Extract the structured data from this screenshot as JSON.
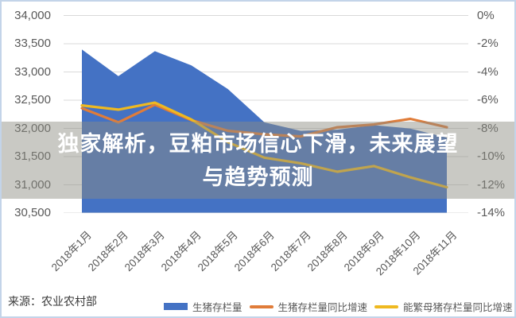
{
  "frame": {
    "border_color": "#c3d4e9",
    "background": "#ffffff"
  },
  "overlay": {
    "line1": "独家解析，豆粕市场信心下滑，未来展望",
    "line2": "与趋势预测",
    "text_color": "#ffffff",
    "band_color": "rgba(140,140,130,0.47)"
  },
  "source": {
    "text": "来源：农业农村部"
  },
  "chart_data": {
    "type": "area",
    "subtype": "area with two yoy growth lines (combo chart)",
    "categories": [
      "2018年1月",
      "2018年2月",
      "2018年3月",
      "2018年4月",
      "2018年5月",
      "2018年6月",
      "2018年7月",
      "2018年8月",
      "2018年9月",
      "2018年10月",
      "2018年11月"
    ],
    "left_axis": {
      "tick_labels": [
        "34,000",
        "33,500",
        "33,000",
        "32,500",
        "32,000",
        "31,500",
        "31,000",
        "30,500"
      ],
      "min": 30500,
      "max": 34000,
      "step": 500
    },
    "right_axis": {
      "tick_labels": [
        "0%",
        "-2%",
        "-4%",
        "-6%",
        "-8%",
        "-10%",
        "-12%",
        "-14%"
      ],
      "min": -14,
      "max": 0,
      "step": -2,
      "unit": "%"
    },
    "grid": true,
    "grid_color": "#d9d9d9",
    "legend_position": "bottom",
    "series": [
      {
        "name": "生猪存栏量",
        "type": "area",
        "axis": "left",
        "color": "#4472C4",
        "swatch": "rect",
        "values": [
          33390,
          32920,
          33360,
          33110,
          32690,
          32100,
          31950,
          31970,
          32050,
          31990,
          31830
        ]
      },
      {
        "name": "生猪存栏量同比增速",
        "type": "line",
        "axis": "right",
        "color": "#E07C39",
        "swatch": "line",
        "values": [
          -6.6,
          -7.6,
          -6.35,
          -7.45,
          -8.2,
          -8.45,
          -8.6,
          -7.95,
          -7.75,
          -7.35,
          -7.95
        ]
      },
      {
        "name": "能繁母猪存栏量同比增速",
        "type": "line",
        "axis": "right",
        "color": "#EFB920",
        "swatch": "line",
        "values": [
          -6.4,
          -6.7,
          -6.2,
          -7.4,
          -9.0,
          -10.1,
          -10.5,
          -11.1,
          -10.7,
          -11.5,
          -12.2
        ]
      }
    ]
  }
}
